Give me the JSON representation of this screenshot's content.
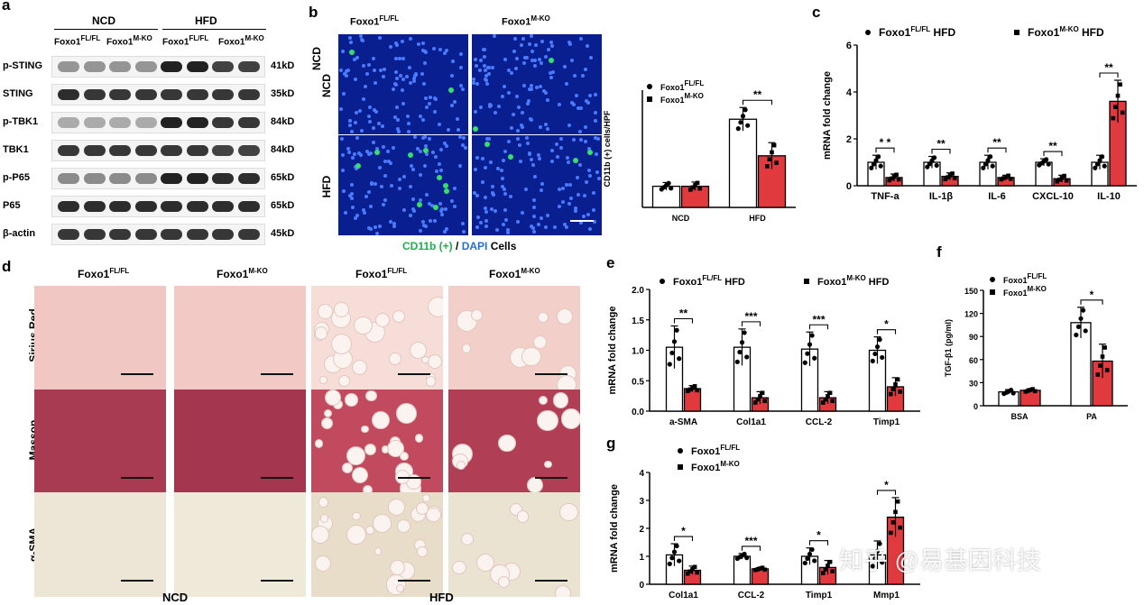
{
  "panel_labels": {
    "a": "a",
    "b": "b",
    "c": "c",
    "d": "d",
    "e": "e",
    "f": "f",
    "g": "g"
  },
  "panel_a": {
    "group_ncd": "NCD",
    "group_hfd": "HFD",
    "genotypes": [
      "Foxo1",
      "FL/FL",
      "Foxo1",
      "M-KO",
      "Foxo1",
      "FL/FL",
      "Foxo1",
      "M-KO"
    ],
    "rows": [
      {
        "label": "p-STING",
        "size": "41kD"
      },
      {
        "label": "STING",
        "size": "35kD"
      },
      {
        "label": "p-TBK1",
        "size": "84kD"
      },
      {
        "label": "TBK1",
        "size": "84kD"
      },
      {
        "label": "p-P65",
        "size": "65kD"
      },
      {
        "label": "P65",
        "size": "65kD"
      },
      {
        "label": "β-actin",
        "size": "45kD"
      }
    ]
  },
  "panel_b": {
    "col1_base": "Foxo1",
    "col1_sup": "FL/FL",
    "col2_base": "Foxo1",
    "col2_sup": "M-KO",
    "row1": "NCD",
    "row2": "HFD",
    "caption_green": "CD11b (+)",
    "caption_sep": " / ",
    "caption_blue": "DAPI",
    "caption_rest": " Cells"
  },
  "panel_d": {
    "col_headers": [
      {
        "base": "Foxo1",
        "sup": "FL/FL"
      },
      {
        "base": "Foxo1",
        "sup": "M-KO"
      },
      {
        "base": "Foxo1",
        "sup": "FL/FL"
      },
      {
        "base": "Foxo1",
        "sup": "M-KO"
      }
    ],
    "rows": [
      "Sirius Red",
      "Masson",
      "α-SMA"
    ],
    "bottom_ncd": "NCD",
    "bottom_hfd": "HFD"
  },
  "watermark": "知乎 @易基因科技",
  "colors": {
    "ctrl": "#ffffff",
    "ko": "#e0393e",
    "axis": "#000000"
  },
  "chart_data": [
    {
      "id": "b",
      "type": "bar",
      "categories": [
        "NCD",
        "HFD"
      ],
      "ylabel": "CD11b (+) cells/HPF",
      "ylim": [
        0,
        25
      ],
      "yticks": [],
      "legend": [
        {
          "base": "Foxo1",
          "sup": "FL/FL"
        },
        {
          "base": "Foxo1",
          "sup": "M-KO"
        }
      ],
      "series": [
        {
          "name": "Foxo1 FL/FL",
          "values": [
            4.5,
            18.8
          ],
          "err": [
            0.8,
            2.5
          ]
        },
        {
          "name": "Foxo1 M-KO",
          "values": [
            4.5,
            11
          ],
          "err": [
            0.9,
            2.8
          ]
        }
      ],
      "sig": [
        {
          "cat": 1,
          "text": "**"
        }
      ]
    },
    {
      "id": "c",
      "type": "bar",
      "categories": [
        "TNF-a",
        "IL-1β",
        "IL-6",
        "CXCL-10",
        "IL-10"
      ],
      "ylabel": "mRNA fold change",
      "ylim": [
        0,
        6
      ],
      "yticks": [
        "0",
        "2",
        "4",
        "6"
      ],
      "legend": [
        {
          "base": "Foxo1",
          "sup": "FL/FL",
          "suffix": " HFD"
        },
        {
          "base": "Foxo1",
          "sup": "M-KO",
          "suffix": " HFD"
        }
      ],
      "series": [
        {
          "name": "Foxo1 FL/FL HFD",
          "values": [
            1.0,
            1.0,
            1.0,
            1.0,
            1.0
          ],
          "err": [
            0.3,
            0.25,
            0.3,
            0.15,
            0.3
          ]
        },
        {
          "name": "Foxo1 M-KO HFD",
          "values": [
            0.35,
            0.4,
            0.35,
            0.3,
            3.6
          ],
          "err": [
            0.15,
            0.15,
            0.1,
            0.15,
            0.9
          ]
        }
      ],
      "sig": [
        {
          "cat": 0,
          "text": "* *"
        },
        {
          "cat": 1,
          "text": "**"
        },
        {
          "cat": 2,
          "text": "**"
        },
        {
          "cat": 3,
          "text": "**"
        },
        {
          "cat": 4,
          "text": "**"
        }
      ]
    },
    {
      "id": "e",
      "type": "bar",
      "categories": [
        "a-SMA",
        "Col1a1",
        "CCL-2",
        "Timp1"
      ],
      "ylabel": "mRNA fold change",
      "ylim": [
        0,
        2.0
      ],
      "yticks": [
        "0.0",
        "0.5",
        "1.0",
        "1.5",
        "2.0"
      ],
      "legend": [
        {
          "base": "Foxo1",
          "sup": "FL/FL",
          "suffix": " HFD"
        },
        {
          "base": "Foxo1",
          "sup": "M-KO",
          "suffix": " HFD"
        }
      ],
      "series": [
        {
          "name": "Foxo1 FL/FL HFD",
          "values": [
            1.05,
            1.05,
            1.02,
            1.0
          ],
          "err": [
            0.35,
            0.3,
            0.28,
            0.22
          ]
        },
        {
          "name": "Foxo1 M-KO HFD",
          "values": [
            0.37,
            0.22,
            0.22,
            0.4
          ],
          "err": [
            0.05,
            0.1,
            0.1,
            0.15
          ]
        }
      ],
      "sig": [
        {
          "cat": 0,
          "text": "**"
        },
        {
          "cat": 1,
          "text": "***"
        },
        {
          "cat": 2,
          "text": "***"
        },
        {
          "cat": 3,
          "text": "*"
        }
      ]
    },
    {
      "id": "f",
      "type": "bar",
      "categories": [
        "BSA",
        "PA"
      ],
      "ylabel": "TGF-β1 (pg/ml)",
      "ylim": [
        0,
        150
      ],
      "yticks": [
        "0",
        "30",
        "60",
        "90",
        "120",
        "150"
      ],
      "legend": [
        {
          "base": "Foxo1",
          "sup": "FL/FL"
        },
        {
          "base": "Foxo1",
          "sup": "M-KO"
        }
      ],
      "series": [
        {
          "name": "Foxo1 FL/FL",
          "values": [
            18,
            108
          ],
          "err": [
            3,
            20
          ]
        },
        {
          "name": "Foxo1 M-KO",
          "values": [
            20,
            58
          ],
          "err": [
            2,
            22
          ]
        }
      ],
      "sig": [
        {
          "cat": 1,
          "text": "*"
        }
      ]
    },
    {
      "id": "g",
      "type": "bar",
      "categories": [
        "Col1a1",
        "CCL-2",
        "Timp1",
        "Mmp1"
      ],
      "ylabel": "mRNA fold change",
      "ylim": [
        0,
        4
      ],
      "yticks": [
        "0",
        "1",
        "2",
        "3",
        "4"
      ],
      "legend": [
        {
          "base": "Foxo1",
          "sup": "FL/FL"
        },
        {
          "base": "Foxo1",
          "sup": "M-KO"
        }
      ],
      "series": [
        {
          "name": "Foxo1 FL/FL",
          "values": [
            1.05,
            1.0,
            1.0,
            1.05
          ],
          "err": [
            0.4,
            0.1,
            0.3,
            0.5
          ]
        },
        {
          "name": "Foxo1 M-KO",
          "values": [
            0.5,
            0.55,
            0.6,
            2.4
          ],
          "err": [
            0.15,
            0.05,
            0.25,
            0.7
          ]
        }
      ],
      "sig": [
        {
          "cat": 0,
          "text": "*"
        },
        {
          "cat": 1,
          "text": "***"
        },
        {
          "cat": 2,
          "text": "*"
        },
        {
          "cat": 3,
          "text": "*"
        }
      ]
    }
  ]
}
